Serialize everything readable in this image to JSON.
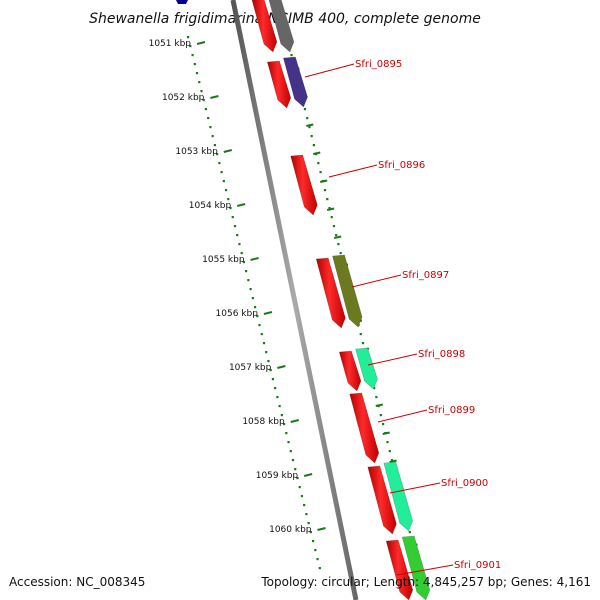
{
  "title": "Shewanella frigidimarina NCIMB 400, complete genome",
  "footer": {
    "accession": "Accession: NC_008345",
    "topology": "Topology: circular; Length: 4,845,257 bp; Genes: 4,161"
  },
  "kbp_ticks": [
    "1051 kbp",
    "1052 kbp",
    "1053 kbp",
    "1054 kbp",
    "1055 kbp",
    "1056 kbp",
    "1057 kbp",
    "1058 kbp",
    "1059 kbp",
    "1060 kbp"
  ],
  "genes": [
    "Sfri_0895",
    "Sfri_0896",
    "Sfri_0897",
    "Sfri_0898",
    "Sfri_0899",
    "Sfri_0900",
    "Sfri_0901"
  ],
  "colors": {
    "backbone": "#888888",
    "cds": "#ff0000",
    "tick_green": "#1a7a1a",
    "label_red": "#cc0000",
    "cog_gray": "#666666",
    "cog_purple": "#443388",
    "cog_olive": "#6b7a1f",
    "cog_aqua": "#22ee99",
    "cog_green": "#33cc33",
    "cog_navy": "#000088"
  }
}
